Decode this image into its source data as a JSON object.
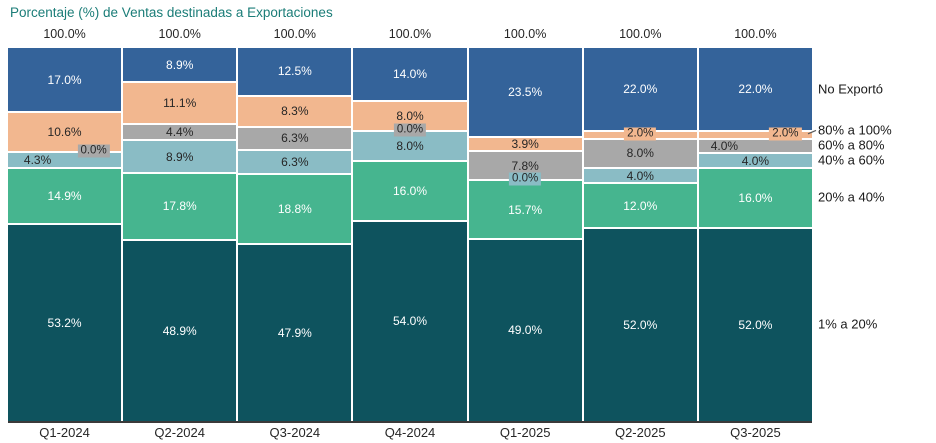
{
  "title": "Porcentaje (%) de Ventas destinadas a Exportaciones",
  "column_total_label": "100.0%",
  "colors": {
    "title_text": "#1b7d78",
    "axis_text": "#262626",
    "axis_line": "#3a3a3a",
    "label_dark": "#262626",
    "label_light": "#ffffff",
    "leader_line": "#595959"
  },
  "chart_data": {
    "type": "bar",
    "stacked": true,
    "percent_stacked": true,
    "title": "Porcentaje (%) de Ventas destinadas a Exportaciones",
    "xlabel": "",
    "ylabel": "",
    "ylim": [
      0,
      100
    ],
    "grid": false,
    "legend_position": "right",
    "value_suffix": "%",
    "column_totals": [
      "100.0%",
      "100.0%",
      "100.0%",
      "100.0%",
      "100.0%",
      "100.0%",
      "100.0%"
    ],
    "categories": [
      "Q1-2024",
      "Q2-2024",
      "Q3-2024",
      "Q4-2024",
      "Q1-2025",
      "Q2-2025",
      "Q3-2025"
    ],
    "series": [
      {
        "name": "No Exportó",
        "color": "#34639a",
        "label_color": "#ffffff",
        "values": [
          17.0,
          8.9,
          12.5,
          14.0,
          23.5,
          22.0,
          22.0
        ]
      },
      {
        "name": "80% a 100%",
        "color": "#f2b78f",
        "label_color": "#262626",
        "values": [
          10.6,
          11.1,
          8.3,
          8.0,
          3.9,
          2.0,
          2.0
        ]
      },
      {
        "name": "60% a 80%",
        "color": "#a8a8a8",
        "label_color": "#262626",
        "values": [
          0.0,
          4.4,
          6.3,
          0.0,
          7.8,
          8.0,
          4.0
        ]
      },
      {
        "name": "40% a 60%",
        "color": "#8abcc5",
        "label_color": "#262626",
        "values": [
          4.3,
          8.9,
          6.3,
          8.0,
          0.0,
          4.0,
          4.0
        ]
      },
      {
        "name": "20% a 40%",
        "color": "#46b58f",
        "label_color": "#ffffff",
        "values": [
          14.9,
          17.8,
          18.8,
          16.0,
          15.7,
          12.0,
          16.0
        ]
      },
      {
        "name": "1% a 20%",
        "color": "#0e535e",
        "label_color": "#ffffff",
        "values": [
          53.2,
          48.9,
          47.9,
          54.0,
          49.0,
          52.0,
          52.0
        ]
      }
    ]
  }
}
